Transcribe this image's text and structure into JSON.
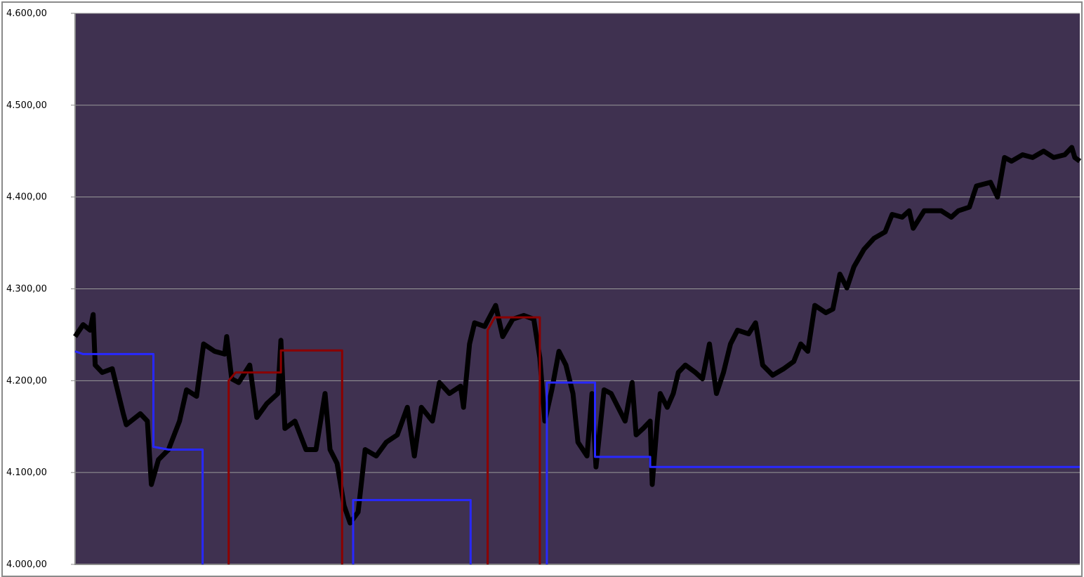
{
  "chart_data": {
    "type": "line",
    "title": "",
    "xlabel": "",
    "ylabel": "",
    "xlim": [
      0,
      1001
    ],
    "ylim": [
      4000,
      4600
    ],
    "yticks": [
      4000,
      4100,
      4200,
      4300,
      4400,
      4500,
      4600
    ],
    "ytick_labels": [
      "4.000,00",
      "4.100,00",
      "4.200,00",
      "4.300,00",
      "4.400,00",
      "4.500,00",
      "4.600,00"
    ],
    "grid": true,
    "legend": "none",
    "colors": {
      "background": "#3f3150",
      "price": "#000000",
      "blue": "#2828ff",
      "red": "#8b0000",
      "grid": "#9a9a9a"
    },
    "series": [
      {
        "color": "#000000",
        "style": "thick-line",
        "points": [
          [
            0,
            4248
          ],
          [
            8,
            4261
          ],
          [
            15,
            4255
          ],
          [
            18,
            4272
          ],
          [
            20,
            4217
          ],
          [
            27,
            4209
          ],
          [
            37,
            4213
          ],
          [
            48,
            4164
          ],
          [
            51,
            4152
          ],
          [
            65,
            4164
          ],
          [
            72,
            4156
          ],
          [
            76,
            4087
          ],
          [
            83,
            4114
          ],
          [
            93,
            4125
          ],
          [
            104,
            4156
          ],
          [
            111,
            4190
          ],
          [
            121,
            4183
          ],
          [
            128,
            4240
          ],
          [
            139,
            4232
          ],
          [
            149,
            4229
          ],
          [
            151,
            4248
          ],
          [
            156,
            4202
          ],
          [
            163,
            4198
          ],
          [
            174,
            4217
          ],
          [
            181,
            4160
          ],
          [
            191,
            4175
          ],
          [
            202,
            4186
          ],
          [
            205,
            4244
          ],
          [
            209,
            4148
          ],
          [
            219,
            4156
          ],
          [
            230,
            4125
          ],
          [
            240,
            4125
          ],
          [
            249,
            4186
          ],
          [
            254,
            4125
          ],
          [
            261,
            4110
          ],
          [
            268,
            4064
          ],
          [
            274,
            4045
          ],
          [
            282,
            4057
          ],
          [
            289,
            4125
          ],
          [
            300,
            4118
          ],
          [
            310,
            4133
          ],
          [
            321,
            4141
          ],
          [
            331,
            4171
          ],
          [
            338,
            4118
          ],
          [
            345,
            4171
          ],
          [
            356,
            4156
          ],
          [
            363,
            4198
          ],
          [
            373,
            4186
          ],
          [
            384,
            4194
          ],
          [
            387,
            4171
          ],
          [
            393,
            4240
          ],
          [
            398,
            4263
          ],
          [
            408,
            4259
          ],
          [
            419,
            4282
          ],
          [
            426,
            4248
          ],
          [
            436,
            4267
          ],
          [
            447,
            4271
          ],
          [
            457,
            4267
          ],
          [
            463,
            4225
          ],
          [
            468,
            4156
          ],
          [
            475,
            4190
          ],
          [
            482,
            4232
          ],
          [
            489,
            4217
          ],
          [
            496,
            4186
          ],
          [
            501,
            4133
          ],
          [
            510,
            4118
          ],
          [
            515,
            4186
          ],
          [
            519,
            4106
          ],
          [
            527,
            4190
          ],
          [
            534,
            4186
          ],
          [
            541,
            4171
          ],
          [
            548,
            4156
          ],
          [
            555,
            4198
          ],
          [
            559,
            4141
          ],
          [
            566,
            4148
          ],
          [
            573,
            4156
          ],
          [
            575,
            4087
          ],
          [
            580,
            4156
          ],
          [
            583,
            4186
          ],
          [
            590,
            4171
          ],
          [
            596,
            4186
          ],
          [
            601,
            4209
          ],
          [
            608,
            4217
          ],
          [
            618,
            4209
          ],
          [
            625,
            4202
          ],
          [
            632,
            4240
          ],
          [
            639,
            4186
          ],
          [
            646,
            4209
          ],
          [
            653,
            4240
          ],
          [
            660,
            4255
          ],
          [
            671,
            4251
          ],
          [
            678,
            4263
          ],
          [
            685,
            4217
          ],
          [
            695,
            4206
          ],
          [
            706,
            4213
          ],
          [
            716,
            4221
          ],
          [
            723,
            4240
          ],
          [
            730,
            4232
          ],
          [
            737,
            4282
          ],
          [
            748,
            4274
          ],
          [
            755,
            4278
          ],
          [
            762,
            4316
          ],
          [
            769,
            4301
          ],
          [
            776,
            4324
          ],
          [
            786,
            4343
          ],
          [
            796,
            4355
          ],
          [
            807,
            4362
          ],
          [
            814,
            4381
          ],
          [
            824,
            4378
          ],
          [
            831,
            4385
          ],
          [
            835,
            4366
          ],
          [
            846,
            4385
          ],
          [
            863,
            4385
          ],
          [
            873,
            4378
          ],
          [
            880,
            4385
          ],
          [
            891,
            4389
          ],
          [
            898,
            4412
          ],
          [
            912,
            4416
          ],
          [
            919,
            4400
          ],
          [
            926,
            4443
          ],
          [
            933,
            4439
          ],
          [
            944,
            4446
          ],
          [
            954,
            4443
          ],
          [
            965,
            4450
          ],
          [
            975,
            4443
          ],
          [
            986,
            4446
          ],
          [
            993,
            4454
          ],
          [
            996,
            4443
          ],
          [
            1001,
            4439
          ]
        ]
      },
      {
        "color": "#2828ff",
        "style": "step",
        "points": [
          [
            0,
            4232
          ],
          [
            8,
            4229
          ],
          [
            78,
            4229
          ],
          [
            78,
            4128
          ],
          [
            93,
            4125
          ],
          [
            127,
            4125
          ],
          [
            127,
            4000
          ]
        ]
      },
      {
        "color": "#2828ff",
        "style": "step",
        "points": [
          [
            277,
            4000
          ],
          [
            277,
            4070
          ],
          [
            394,
            4070
          ],
          [
            394,
            4000
          ]
        ]
      },
      {
        "color": "#2828ff",
        "style": "step",
        "points": [
          [
            470,
            4000
          ],
          [
            470,
            4198
          ],
          [
            518,
            4198
          ],
          [
            518,
            4117
          ],
          [
            573,
            4117
          ],
          [
            573,
            4106
          ],
          [
            1001,
            4106
          ]
        ]
      },
      {
        "color": "#8b0000",
        "style": "step",
        "points": [
          [
            153,
            4000
          ],
          [
            153,
            4200
          ],
          [
            160,
            4209
          ],
          [
            205,
            4209
          ],
          [
            205,
            4233
          ],
          [
            266,
            4233
          ],
          [
            266,
            4000
          ]
        ]
      },
      {
        "color": "#8b0000",
        "style": "step",
        "points": [
          [
            411,
            4000
          ],
          [
            411,
            4255
          ],
          [
            418,
            4269
          ],
          [
            463,
            4269
          ],
          [
            463,
            4000
          ]
        ]
      }
    ]
  }
}
